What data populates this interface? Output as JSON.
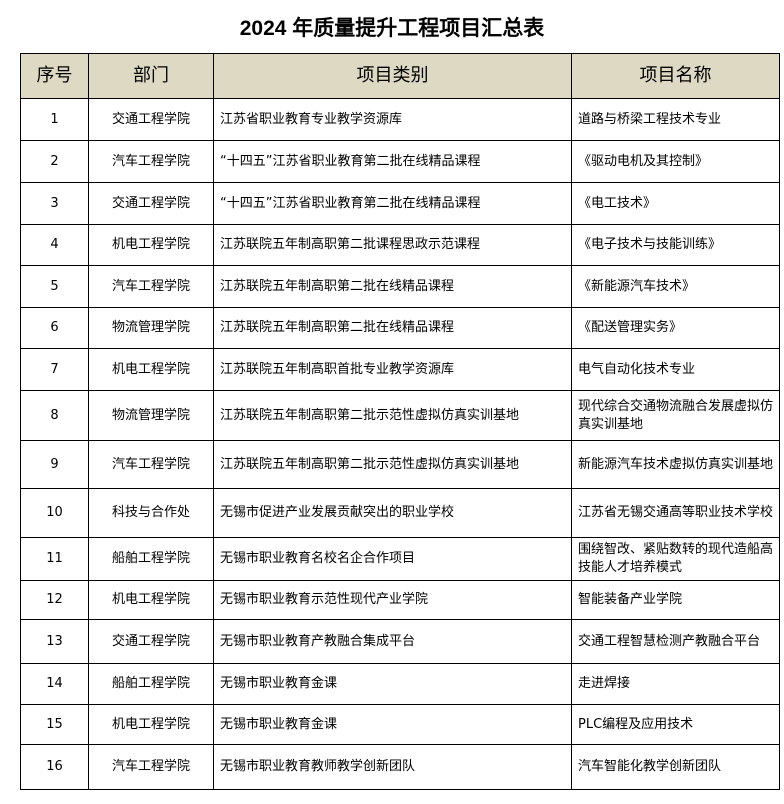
{
  "title": "2024 年质量提升工程项目汇总表",
  "headers": [
    "序号",
    "部门",
    "项目类别",
    "项目名称"
  ],
  "colors": {
    "header_bg": "#ddd9c3"
  },
  "rows": [
    [
      "1",
      "交通工程学院",
      "江苏省职业教育专业教学资源库",
      "道路与桥梁工程技术专业"
    ],
    [
      "2",
      "汽车工程学院",
      "“十四五”江苏省职业教育第二批在线精品课程",
      "《驱动电机及其控制》"
    ],
    [
      "3",
      "交通工程学院",
      "“十四五”江苏省职业教育第二批在线精品课程",
      "《电工技术》"
    ],
    [
      "4",
      "机电工程学院",
      "江苏联院五年制高职第二批课程思政示范课程",
      "《电子技术与技能训练》"
    ],
    [
      "5",
      "汽车工程学院",
      "江苏联院五年制高职第二批在线精品课程",
      "《新能源汽车技术》"
    ],
    [
      "6",
      "物流管理学院",
      "江苏联院五年制高职第二批在线精品课程",
      "《配送管理实务》"
    ],
    [
      "7",
      "机电工程学院",
      "江苏联院五年制高职首批专业教学资源库",
      "电气自动化技术专业"
    ],
    [
      "8",
      "物流管理学院",
      "江苏联院五年制高职第二批示范性虚拟仿真实训基地",
      "现代综合交通物流融合发展虚拟仿真实训基地"
    ],
    [
      "9",
      "汽车工程学院",
      "江苏联院五年制高职第二批示范性虚拟仿真实训基地",
      "新能源汽车技术虚拟仿真实训基地"
    ],
    [
      "10",
      "科技与合作处",
      "无锡市促进产业发展贡献突出的职业学校",
      "江苏省无锡交通高等职业技术学校"
    ],
    [
      "11",
      "船舶工程学院",
      "无锡市职业教育名校名企合作项目",
      "围绕智改、紧贴数转的现代造船高技能人才培养模式"
    ],
    [
      "12",
      "机电工程学院",
      "无锡市职业教育示范性现代产业学院",
      "智能装备产业学院"
    ],
    [
      "13",
      "交通工程学院",
      "无锡市职业教育产教融合集成平台",
      "交通工程智慧检测产教融合平台"
    ],
    [
      "14",
      "船舶工程学院",
      "无锡市职业教育金课",
      "走进焊接"
    ],
    [
      "15",
      "机电工程学院",
      "无锡市职业教育金课",
      "PLC编程及应用技术"
    ],
    [
      "16",
      "汽车工程学院",
      "无锡市职业教育教师教学创新团队",
      "汽车智能化教学创新团队"
    ]
  ]
}
